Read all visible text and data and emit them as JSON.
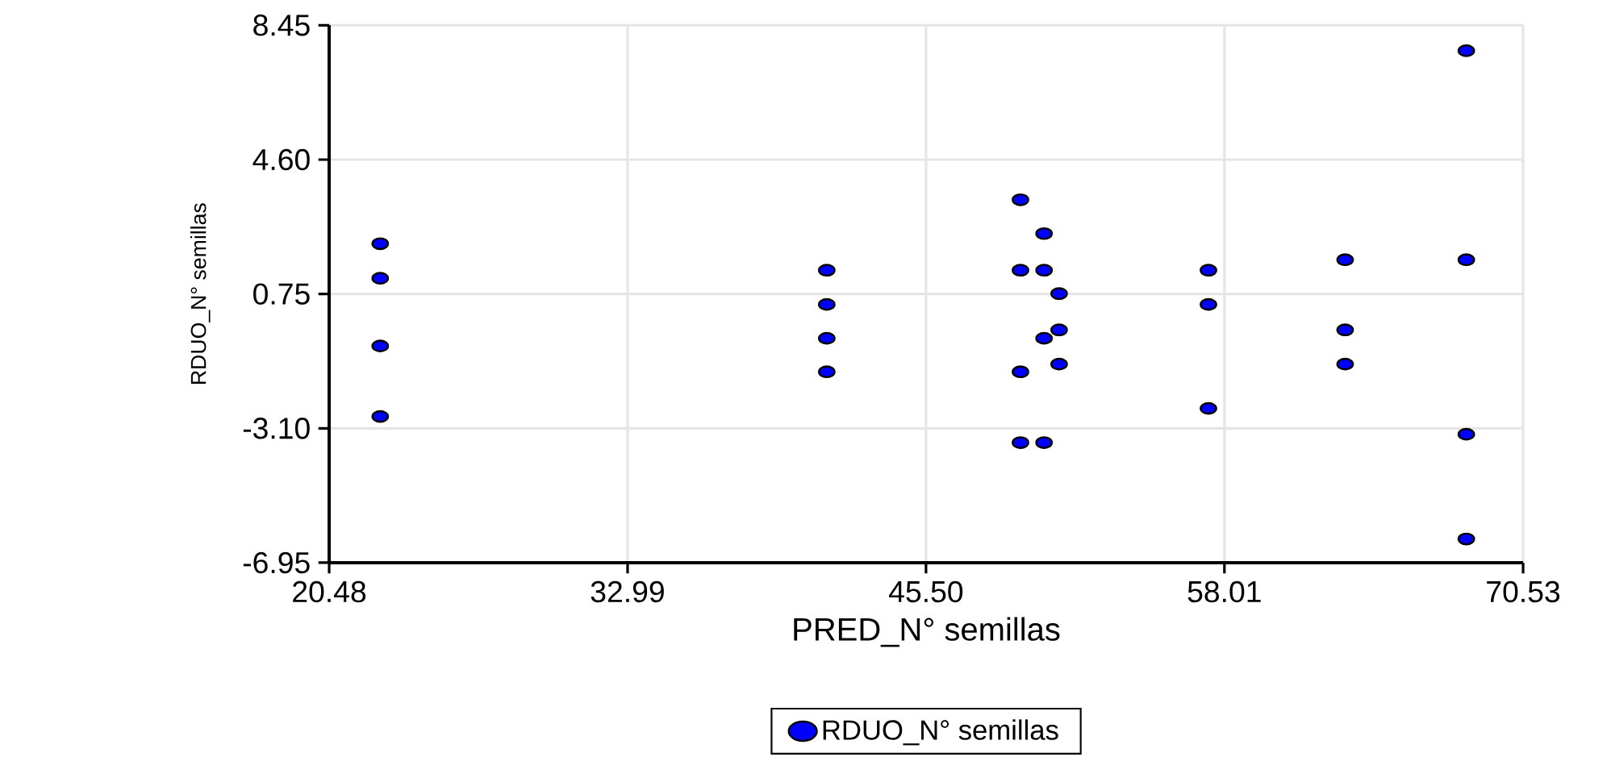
{
  "chart_data": {
    "type": "scatter",
    "xlabel": "PRED_N° semillas",
    "ylabel": "RDUO_N° semillas",
    "xlim": [
      20.48,
      70.53
    ],
    "xticks": [
      20.48,
      32.99,
      {
        "value": 45.5,
        "label": "45.50"
      },
      58.01,
      70.53
    ],
    "ylim": [
      -6.95,
      8.45
    ],
    "yticks": [
      -6.95,
      {
        "value": -3.1,
        "label": "-3.10"
      },
      0.75,
      {
        "value": 4.6,
        "label": "4.60"
      },
      8.45
    ],
    "grid": true,
    "legend": "bottom",
    "marker": "circle",
    "series": [
      {
        "name": "RDUO_N° semillas",
        "color": "#0000ff",
        "x": [
          22.62,
          22.62,
          22.62,
          22.62,
          41.34,
          41.34,
          41.34,
          41.34,
          49.46,
          49.46,
          49.46,
          49.46,
          50.45,
          50.45,
          50.45,
          50.45,
          51.08,
          51.08,
          51.08,
          57.34,
          57.34,
          57.34,
          63.07,
          63.07,
          63.07,
          68.15,
          68.15,
          68.15,
          68.15
        ],
        "values": [
          2.19,
          1.2,
          -0.74,
          -2.76,
          1.43,
          0.45,
          -0.52,
          -1.48,
          3.45,
          1.43,
          -1.48,
          -3.51,
          2.48,
          1.43,
          -0.52,
          -3.51,
          0.76,
          -0.28,
          -1.26,
          1.43,
          0.45,
          -2.53,
          1.73,
          -0.28,
          -1.26,
          7.72,
          1.73,
          -3.27,
          -6.27
        ]
      }
    ]
  }
}
